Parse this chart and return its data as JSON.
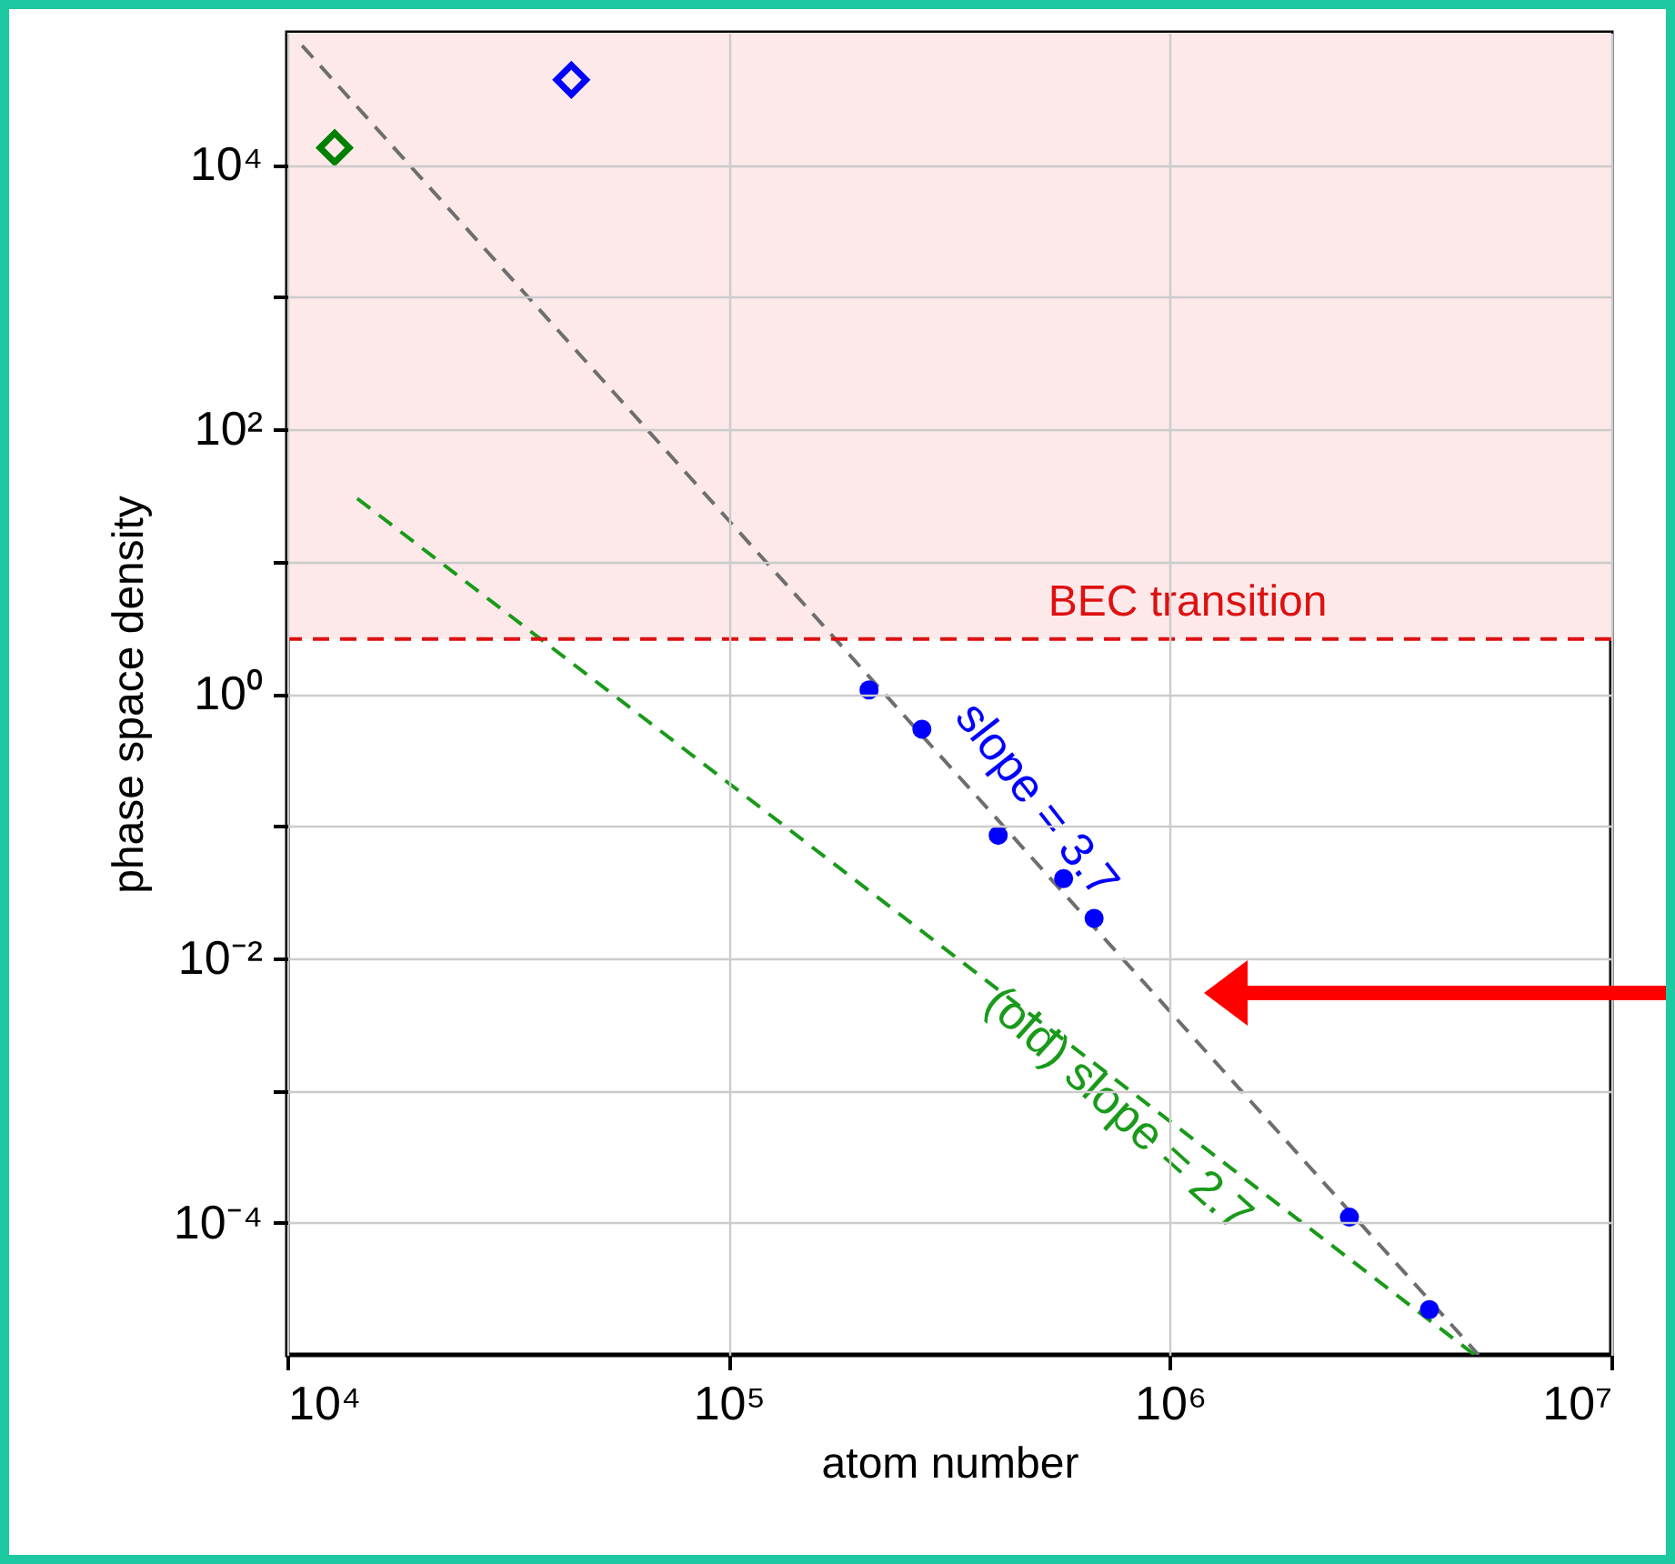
{
  "chart_data": {
    "type": "scatter",
    "xlabel": "atom number",
    "ylabel": "phase space density",
    "xlim": [
      10000,
      10000000
    ],
    "ylim": [
      1e-05,
      100000
    ],
    "xticks": [
      {
        "value": 10000,
        "label": "10⁴"
      },
      {
        "value": 100000,
        "label": "10⁵"
      },
      {
        "value": 1000000,
        "label": "10⁶"
      },
      {
        "value": 10000000,
        "label": "10⁷"
      }
    ],
    "yticks": [
      {
        "value": 0.0001,
        "label": "10⁻⁴"
      },
      {
        "value": 0.001,
        "label": null
      },
      {
        "value": 0.01,
        "label": "10⁻²"
      },
      {
        "value": 0.1,
        "label": null
      },
      {
        "value": 1,
        "label": "10⁰"
      },
      {
        "value": 10,
        "label": null
      },
      {
        "value": 100,
        "label": "10²"
      },
      {
        "value": 1000,
        "label": null
      },
      {
        "value": 10000,
        "label": "10⁴"
      }
    ],
    "log": "xy",
    "grid": true,
    "series": [
      {
        "type": "line",
        "color": "#6e6e6e",
        "line_style": "dashed",
        "marker": "none",
        "x": [
          10800,
          5000000
        ],
        "values": [
          80000,
          1e-05
        ]
      },
      {
        "type": "line",
        "color": "#1a9a1a",
        "line_style": "dashed",
        "marker": "none",
        "x": [
          14400,
          4900000
        ],
        "values": [
          30,
          1e-05
        ]
      },
      {
        "color": "#0000ff",
        "marker": "circle",
        "x": [
          208000,
          274000,
          408000,
          574000,
          673000,
          2550000,
          3870000
        ],
        "values": [
          1.07,
          0.54,
          0.085,
          0.04,
          0.02,
          0.00011,
          2.2e-05
        ]
      },
      {
        "color": "#0000ff",
        "marker": "diamond",
        "x": [
          44000
        ],
        "values": [
          44000
        ]
      },
      {
        "color": "#008000",
        "marker": "diamond",
        "x": [
          12800
        ],
        "values": [
          13500
        ]
      }
    ],
    "bands": [
      {
        "axis": "y",
        "from": 2.6,
        "to": 100000,
        "color": "#fde9e9"
      }
    ],
    "ref_lines": [
      {
        "axis": "y",
        "value": 2.6,
        "label": "BEC transition",
        "color": "#dd1111",
        "line_style": "dashed"
      }
    ],
    "annotations": [
      "slope  = 3.7",
      "(old) slope  = 2.7"
    ]
  }
}
